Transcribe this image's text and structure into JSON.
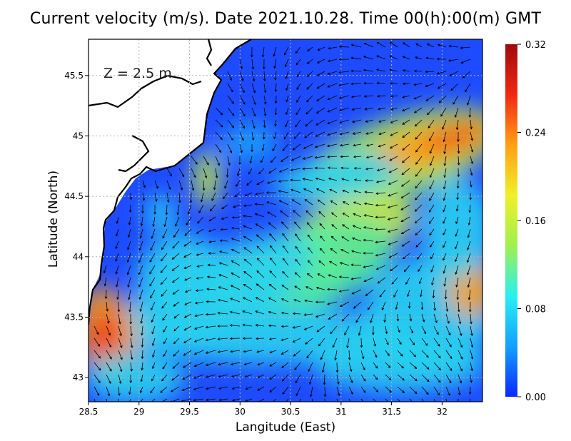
{
  "title": "Current velocity (m/s). Date 2021.10.28. Time 00(h):00(m) GMT",
  "depth_label": "Z  =  2.5  m",
  "chart_data": {
    "type": "heatmap",
    "title": "Current velocity (m/s). Date 2021.10.28. Time 00(h):00(m) GMT",
    "xlabel": "Langitude (East)",
    "ylabel": "Latitude (North)",
    "xlim": [
      28.5,
      32.4
    ],
    "ylim": [
      42.8,
      45.8
    ],
    "x_ticks": [
      "28.5",
      "29",
      "29.5",
      "30",
      "30.5",
      "31",
      "31.5",
      "32"
    ],
    "y_ticks": [
      "43",
      "43.5",
      "44",
      "44.5",
      "45",
      "45.5"
    ],
    "x_tick_values": [
      28.5,
      29,
      29.5,
      30,
      30.5,
      31,
      31.5,
      32
    ],
    "y_tick_values": [
      43,
      43.5,
      44,
      44.5,
      45,
      45.5
    ],
    "colorbar": {
      "ticks": [
        "0.32",
        "0.24",
        "0.16",
        "0.08",
        "0.00"
      ],
      "range": [
        0,
        0.32
      ],
      "colors": [
        "#0a28ff",
        "#14a0ff",
        "#28f0f0",
        "#a0f050",
        "#f0f028",
        "#ffa014",
        "#f02814",
        "#a00a0a"
      ]
    },
    "grid": true,
    "vectors": true
  }
}
